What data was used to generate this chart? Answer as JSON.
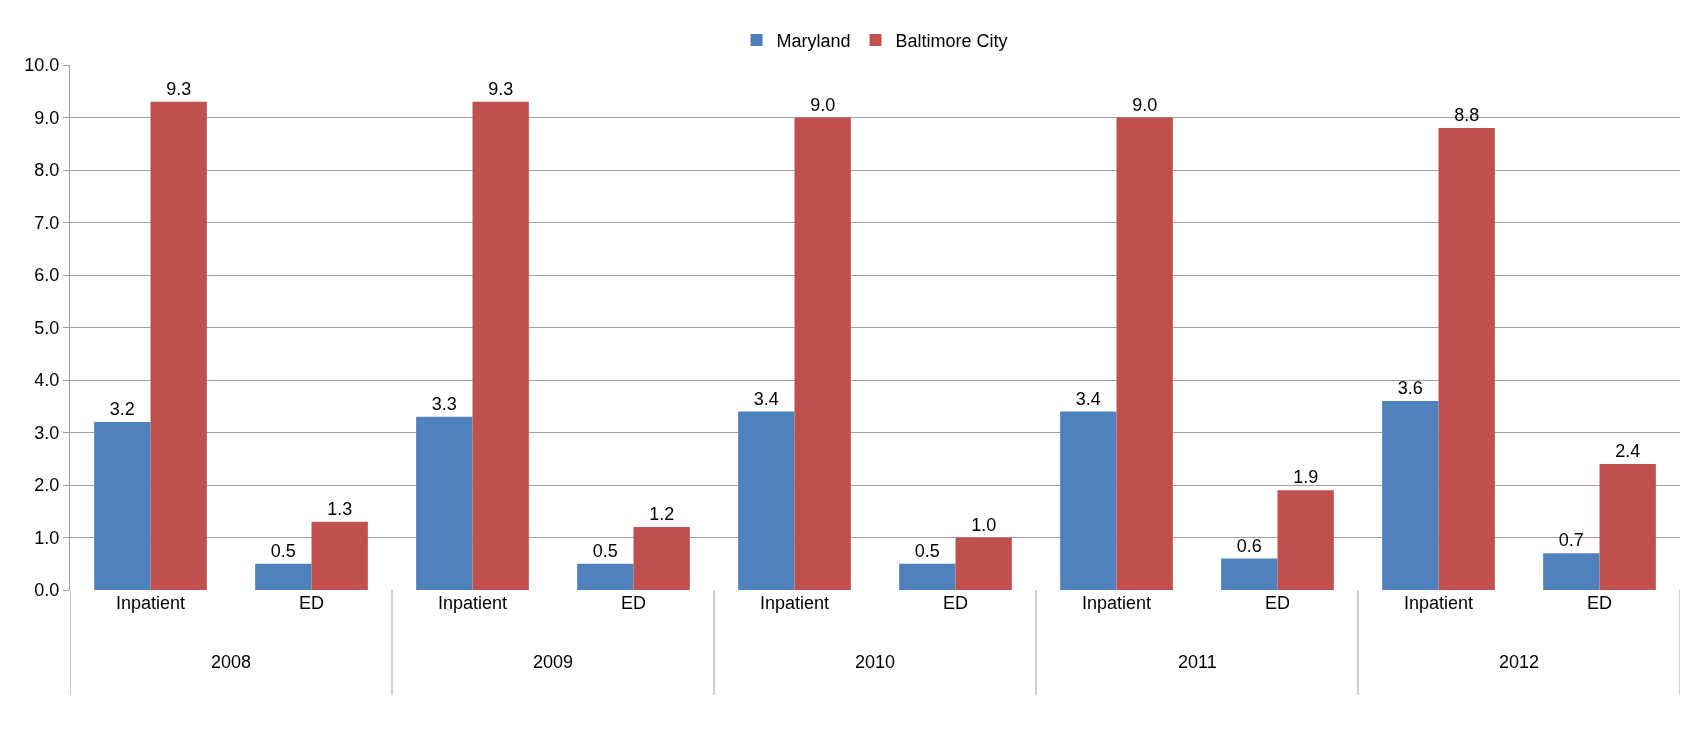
{
  "chart_data": {
    "type": "bar",
    "categories": [
      "Inpatient",
      "ED",
      "Inpatient",
      "ED",
      "Inpatient",
      "ED",
      "Inpatient",
      "ED",
      "Inpatient",
      "ED"
    ],
    "series": [
      {
        "name": "Maryland",
        "color": "#4f81bd",
        "values": [
          3.2,
          0.5,
          3.3,
          0.5,
          3.4,
          0.5,
          3.4,
          0.6,
          3.6,
          0.7
        ],
        "value_labels": [
          "3.2",
          "0.5",
          "3.3",
          "0.5",
          "3.4",
          "0.5",
          "3.4",
          "0.6",
          "3.6",
          "0.7"
        ]
      },
      {
        "name": "Baltimore City",
        "color": "#c0504d",
        "values": [
          9.3,
          1.3,
          9.3,
          1.2,
          9.0,
          1.0,
          9.0,
          1.9,
          8.8,
          2.4
        ],
        "value_labels": [
          "9.3",
          "1.3",
          "9.3",
          "1.2",
          "9.0",
          "1.0",
          "9.0",
          "1.9",
          "8.8",
          "2.4"
        ]
      }
    ],
    "ylim": [
      0,
      10
    ],
    "yticks": [
      {
        "value": 0,
        "label": "0.0"
      },
      {
        "value": 1,
        "label": "1.0"
      },
      {
        "value": 2,
        "label": "2.0"
      },
      {
        "value": 3,
        "label": "3.0"
      },
      {
        "value": 4,
        "label": "4.0"
      },
      {
        "value": 5,
        "label": "5.0"
      },
      {
        "value": 6,
        "label": "6.0"
      },
      {
        "value": 7,
        "label": "7.0"
      },
      {
        "value": 8,
        "label": "8.0"
      },
      {
        "value": 9,
        "label": "9.0"
      },
      {
        "value": 10,
        "label": "10.0"
      }
    ],
    "grid": "y",
    "legend": "top",
    "annotations": [
      "2008",
      "2009",
      "2010",
      "2011",
      "2012"
    ]
  }
}
